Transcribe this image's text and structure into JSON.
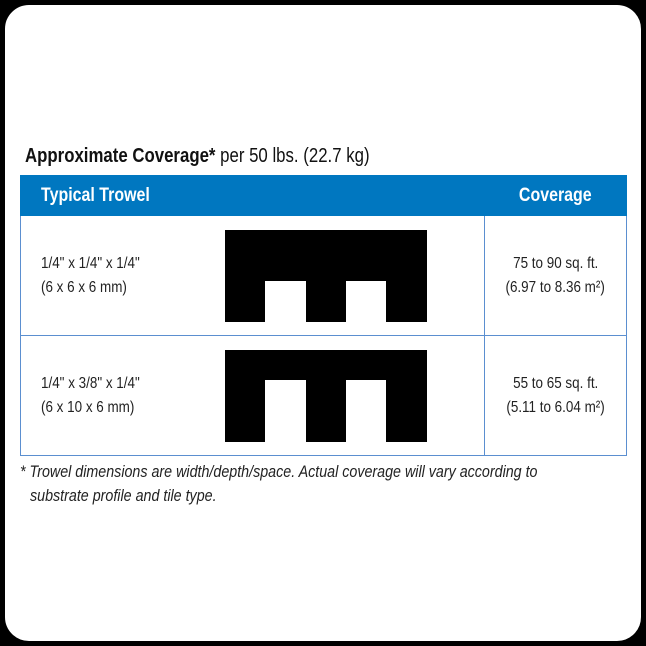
{
  "heading": {
    "bold": "Approximate Coverage*",
    "regular": "per 50 lbs. (22.7 kg)"
  },
  "table": {
    "headers": [
      "Typical Trowel",
      "Coverage"
    ],
    "header_color": "#0077c0",
    "rows": [
      {
        "size": "1/4\" x 1/4\" x 1/4\"",
        "metric": "(6 x 6 x 6 mm)",
        "coverage": "75 to 90 sq. ft.",
        "coverage_metric": "(6.97 to 8.36 m²)",
        "icon": "square-notch-trowel-icon"
      },
      {
        "size": "1/4\" x 3/8\" x 1/4\"",
        "metric": "(6 x 10 x 6 mm)",
        "coverage": "55 to 65 sq. ft.",
        "coverage_metric": "(5.11 to 6.04 m²)",
        "icon": "square-notch-trowel-icon"
      }
    ]
  },
  "footnote": {
    "line1": "* Trowel dimensions are width/depth/space. Actual coverage will vary according to",
    "line2": "substrate profile and tile type."
  }
}
